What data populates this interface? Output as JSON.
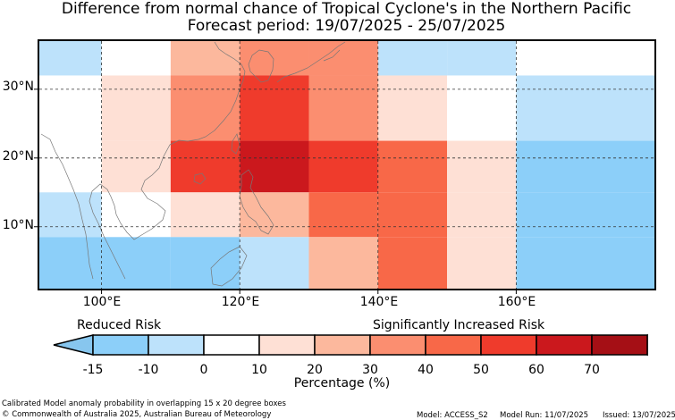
{
  "title": {
    "line1": "Difference from normal chance of Tropical Cyclone's in the Northern Pacific",
    "line2": "Forecast period: 19/07/2025 - 25/07/2025"
  },
  "map": {
    "lon_range": [
      91,
      180
    ],
    "lat_range": [
      1,
      37
    ],
    "lon_ticks": [
      {
        "value": 100,
        "label": "100°E"
      },
      {
        "value": 120,
        "label": "120°E"
      },
      {
        "value": 140,
        "label": "140°E"
      },
      {
        "value": 160,
        "label": "160°E"
      }
    ],
    "lat_ticks": [
      {
        "value": 30,
        "label": "30°N"
      },
      {
        "value": 20,
        "label": "20°N"
      },
      {
        "value": 10,
        "label": "10°N"
      }
    ],
    "cells": [
      {
        "lon0": 91,
        "lon1": 100,
        "lat0": 32.0,
        "lat1": 37,
        "bin": 1
      },
      {
        "lon0": 100,
        "lon1": 110,
        "lat0": 32.0,
        "lat1": 37,
        "bin": 2
      },
      {
        "lon0": 110,
        "lon1": 120,
        "lat0": 32.0,
        "lat1": 37,
        "bin": 4
      },
      {
        "lon0": 120,
        "lon1": 130,
        "lat0": 32.0,
        "lat1": 37,
        "bin": 5
      },
      {
        "lon0": 130,
        "lon1": 140,
        "lat0": 32.0,
        "lat1": 37,
        "bin": 5
      },
      {
        "lon0": 140,
        "lon1": 150,
        "lat0": 32.0,
        "lat1": 37,
        "bin": 1
      },
      {
        "lon0": 150,
        "lon1": 160,
        "lat0": 32.0,
        "lat1": 37,
        "bin": 1
      },
      {
        "lon0": 160,
        "lon1": 180,
        "lat0": 32.0,
        "lat1": 37,
        "bin": 2
      },
      {
        "lon0": 91,
        "lon1": 100,
        "lat0": 22.5,
        "lat1": 32.0,
        "bin": 2
      },
      {
        "lon0": 100,
        "lon1": 110,
        "lat0": 22.5,
        "lat1": 32.0,
        "bin": 3
      },
      {
        "lon0": 110,
        "lon1": 120,
        "lat0": 22.5,
        "lat1": 32.0,
        "bin": 5
      },
      {
        "lon0": 120,
        "lon1": 130,
        "lat0": 22.5,
        "lat1": 32.0,
        "bin": 7
      },
      {
        "lon0": 130,
        "lon1": 140,
        "lat0": 22.5,
        "lat1": 32.0,
        "bin": 5
      },
      {
        "lon0": 140,
        "lon1": 150,
        "lat0": 22.5,
        "lat1": 32.0,
        "bin": 3
      },
      {
        "lon0": 150,
        "lon1": 160,
        "lat0": 22.5,
        "lat1": 32.0,
        "bin": 2
      },
      {
        "lon0": 160,
        "lon1": 180,
        "lat0": 22.5,
        "lat1": 32.0,
        "bin": 1
      },
      {
        "lon0": 91,
        "lon1": 100,
        "lat0": 15.0,
        "lat1": 22.5,
        "bin": 2
      },
      {
        "lon0": 100,
        "lon1": 110,
        "lat0": 15.0,
        "lat1": 22.5,
        "bin": 3
      },
      {
        "lon0": 110,
        "lon1": 120,
        "lat0": 15.0,
        "lat1": 22.5,
        "bin": 7
      },
      {
        "lon0": 120,
        "lon1": 130,
        "lat0": 15.0,
        "lat1": 22.5,
        "bin": 8
      },
      {
        "lon0": 130,
        "lon1": 140,
        "lat0": 15.0,
        "lat1": 22.5,
        "bin": 7
      },
      {
        "lon0": 140,
        "lon1": 150,
        "lat0": 15.0,
        "lat1": 22.5,
        "bin": 6
      },
      {
        "lon0": 150,
        "lon1": 160,
        "lat0": 15.0,
        "lat1": 22.5,
        "bin": 3
      },
      {
        "lon0": 160,
        "lon1": 180,
        "lat0": 15.0,
        "lat1": 22.5,
        "bin": 0
      },
      {
        "lon0": 91,
        "lon1": 100,
        "lat0": 8.5,
        "lat1": 15.0,
        "bin": 1
      },
      {
        "lon0": 100,
        "lon1": 110,
        "lat0": 8.5,
        "lat1": 15.0,
        "bin": 2
      },
      {
        "lon0": 110,
        "lon1": 120,
        "lat0": 8.5,
        "lat1": 15.0,
        "bin": 3
      },
      {
        "lon0": 120,
        "lon1": 130,
        "lat0": 8.5,
        "lat1": 15.0,
        "bin": 4
      },
      {
        "lon0": 130,
        "lon1": 140,
        "lat0": 8.5,
        "lat1": 15.0,
        "bin": 6
      },
      {
        "lon0": 140,
        "lon1": 150,
        "lat0": 8.5,
        "lat1": 15.0,
        "bin": 6
      },
      {
        "lon0": 150,
        "lon1": 160,
        "lat0": 8.5,
        "lat1": 15.0,
        "bin": 3
      },
      {
        "lon0": 160,
        "lon1": 180,
        "lat0": 8.5,
        "lat1": 15.0,
        "bin": 0
      },
      {
        "lon0": 91,
        "lon1": 100,
        "lat0": 1,
        "lat1": 8.5,
        "bin": 0
      },
      {
        "lon0": 100,
        "lon1": 110,
        "lat0": 1,
        "lat1": 8.5,
        "bin": 0
      },
      {
        "lon0": 110,
        "lon1": 120,
        "lat0": 1,
        "lat1": 8.5,
        "bin": 0
      },
      {
        "lon0": 120,
        "lon1": 130,
        "lat0": 1,
        "lat1": 8.5,
        "bin": 1
      },
      {
        "lon0": 130,
        "lon1": 140,
        "lat0": 1,
        "lat1": 8.5,
        "bin": 4
      },
      {
        "lon0": 140,
        "lon1": 150,
        "lat0": 1,
        "lat1": 8.5,
        "bin": 6
      },
      {
        "lon0": 150,
        "lon1": 160,
        "lat0": 1,
        "lat1": 8.5,
        "bin": 3
      },
      {
        "lon0": 160,
        "lon1": 180,
        "lat0": 1,
        "lat1": 8.5,
        "bin": 0
      }
    ]
  },
  "legend": {
    "left_heading": "Reduced Risk",
    "right_heading": "Significantly Increased Risk",
    "colorbar_label": "Percentage (%)",
    "ticks": [
      "-15",
      "-10",
      "0",
      "10",
      "20",
      "30",
      "40",
      "50",
      "60",
      "70"
    ],
    "under_color": "#87c6ee",
    "over_color": "#6b0a13",
    "bin_colors": [
      "#8ccff9",
      "#bde2fb",
      "#ffffff",
      "#fee0d5",
      "#fcb89d",
      "#fb8e70",
      "#f86848",
      "#ef3b2c",
      "#cb181d",
      "#a50f15"
    ]
  },
  "footer": {
    "line1": "Calibrated Model anomaly probability in overlapping 15 x 20 degree boxes",
    "line2": "© Commonwealth of Australia 2025, Australian Bureau of Meteorology",
    "model": "Model: ACCESS_S2",
    "model_run": "Model Run: 11/07/2025",
    "issued": "Issued: 13/07/2025"
  }
}
